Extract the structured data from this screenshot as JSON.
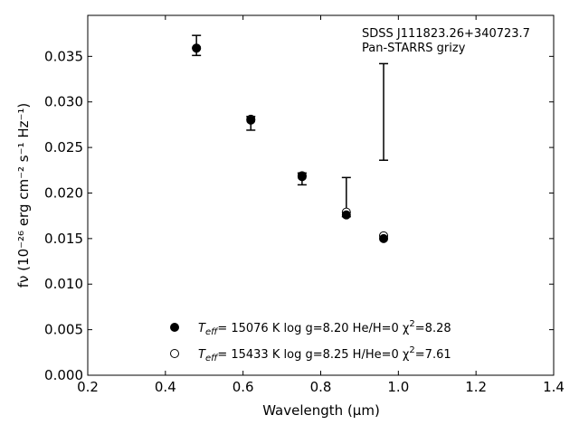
{
  "chart_data": {
    "type": "scatter",
    "xlabel": "Wavelength (μm)",
    "ylabel": "fν (10⁻²⁶ erg cm⁻² s⁻¹ Hz⁻¹)",
    "xlim": [
      0.2,
      1.4
    ],
    "ylim": [
      0.0,
      0.0395
    ],
    "xticks": [
      0.2,
      0.4,
      0.6,
      0.8,
      1.0,
      1.2,
      1.4
    ],
    "xtick_labels": [
      "0.2",
      "0.4",
      "0.6",
      "0.8",
      "1.0",
      "1.2",
      "1.4"
    ],
    "yticks": [
      0.0,
      0.005,
      0.01,
      0.015,
      0.02,
      0.025,
      0.03,
      0.035
    ],
    "ytick_labels": [
      "0.000",
      "0.005",
      "0.010",
      "0.015",
      "0.020",
      "0.025",
      "0.030",
      "0.035"
    ],
    "grid": false,
    "annotation": [
      "SDSS J111823.26+340723.7",
      "Pan-STARRS grizy"
    ],
    "observed": {
      "x": [
        0.48,
        0.62,
        0.752,
        0.866,
        0.962
      ],
      "y_low": [
        0.0351,
        0.0269,
        0.0209,
        0.0174,
        0.0236
      ],
      "y_high": [
        0.0373,
        0.0284,
        0.0222,
        0.0217,
        0.0342
      ]
    },
    "series": [
      {
        "legend_parts": [
          "T",
          "eff",
          "= 15076 K  log g=8.20  He/H=0  χ",
          "2",
          "=8.28"
        ],
        "marker": "filled-circle",
        "x": [
          0.48,
          0.62,
          0.752,
          0.866,
          0.962
        ],
        "y": [
          0.0359,
          0.028,
          0.0218,
          0.0176,
          0.015
        ]
      },
      {
        "legend_parts": [
          "T",
          "eff",
          "= 15433 K  log g=8.25  H/He=0  χ",
          "2",
          "=7.61"
        ],
        "marker": "open-circle",
        "x": [
          0.48,
          0.62,
          0.752,
          0.866,
          0.962
        ],
        "y": [
          0.0359,
          0.0281,
          0.0219,
          0.0179,
          0.0153
        ]
      }
    ],
    "legend_position": "bottom-center"
  }
}
